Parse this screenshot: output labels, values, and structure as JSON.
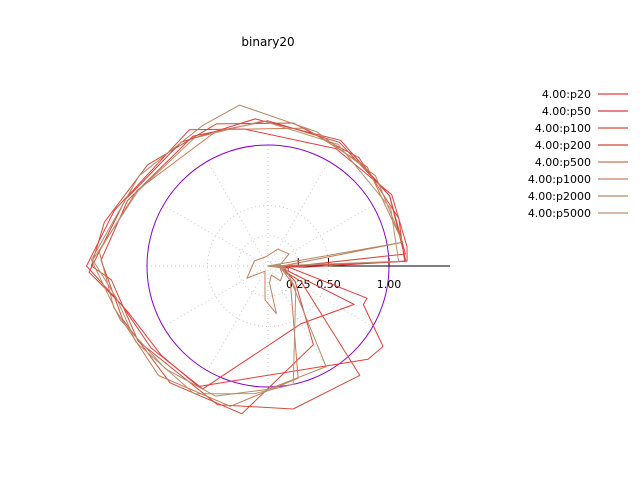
{
  "chart_data": {
    "type": "polar",
    "title": "binary20",
    "radial_ticks": [
      {
        "label": "0.25",
        "value": 0.25
      },
      {
        "label": "0.50",
        "value": 0.5
      },
      {
        "label": "1.00",
        "value": 1.0
      }
    ],
    "unit_circle": {
      "radius": 1.0,
      "color": "#8800cc"
    },
    "grid": true,
    "legend_position": "top-right",
    "series": [
      {
        "name": "4.00:p20",
        "color": "#e83c3c",
        "points": [
          [
            0.0,
            0.0
          ],
          [
            0.1,
            0.0
          ],
          [
            0.11,
            -3
          ],
          [
            0.17,
            -3
          ],
          [
            0.2,
            -6
          ],
          [
            0.86,
            -18
          ],
          [
            0.85,
            -22
          ],
          [
            1.16,
            -35
          ],
          [
            1.13,
            -43
          ],
          [
            1.15,
            -120
          ],
          [
            1.15,
            -140
          ],
          [
            1.22,
            -162
          ],
          [
            1.5,
            -180
          ],
          [
            1.35,
            -200
          ],
          [
            1.3,
            -240
          ],
          [
            1.15,
            -260
          ],
          [
            1.12,
            -300
          ],
          [
            1.18,
            -330
          ],
          [
            1.16,
            -352
          ],
          [
            1.15,
            -358
          ],
          [
            0.2,
            -1
          ],
          [
            0.0,
            0.0
          ]
        ]
      },
      {
        "name": "4.00:p50",
        "color": "#e03a3a",
        "points": [
          [
            0.0,
            0.0
          ],
          [
            0.12,
            0.0
          ],
          [
            0.12,
            -5
          ],
          [
            0.17,
            -6
          ],
          [
            0.17,
            -14
          ],
          [
            0.78,
            -24
          ],
          [
            0.55,
            -60
          ],
          [
            1.15,
            -118
          ],
          [
            1.18,
            -145
          ],
          [
            1.25,
            -165
          ],
          [
            1.48,
            -178
          ],
          [
            1.3,
            -205
          ],
          [
            1.25,
            -235
          ],
          [
            1.22,
            -265
          ],
          [
            1.2,
            -300
          ],
          [
            1.16,
            -330
          ],
          [
            1.14,
            -358
          ],
          [
            0.3,
            -2
          ],
          [
            0.0,
            0.0
          ]
        ]
      },
      {
        "name": "4.00:p100",
        "color": "#d84a3a",
        "points": [
          [
            0.0,
            0.0
          ],
          [
            0.15,
            0.0
          ],
          [
            0.14,
            -10
          ],
          [
            0.16,
            -20
          ],
          [
            0.3,
            -25
          ],
          [
            1.18,
            -50
          ],
          [
            1.2,
            -80
          ],
          [
            1.22,
            -110
          ],
          [
            1.24,
            -150
          ],
          [
            1.3,
            -175
          ],
          [
            1.46,
            -180
          ],
          [
            1.4,
            -195
          ],
          [
            1.3,
            -220
          ],
          [
            1.25,
            -250
          ],
          [
            1.2,
            -280
          ],
          [
            1.17,
            -310
          ],
          [
            1.15,
            -340
          ],
          [
            1.13,
            -358
          ],
          [
            0.1,
            -1
          ],
          [
            0.0,
            0.0
          ]
        ]
      },
      {
        "name": "4.00:p200",
        "color": "#d0483a",
        "points": [
          [
            0.0,
            0.0
          ],
          [
            0.12,
            -2
          ],
          [
            0.13,
            -12
          ],
          [
            0.17,
            -18
          ],
          [
            0.26,
            -30
          ],
          [
            0.75,
            -60
          ],
          [
            1.24,
            -100
          ],
          [
            1.26,
            -130
          ],
          [
            1.28,
            -160
          ],
          [
            1.38,
            -182
          ],
          [
            1.28,
            -205
          ],
          [
            1.24,
            -240
          ],
          [
            1.2,
            -270
          ],
          [
            1.18,
            -300
          ],
          [
            1.16,
            -330
          ],
          [
            1.14,
            -355
          ],
          [
            0.2,
            -1
          ],
          [
            0.0,
            0.0
          ]
        ]
      },
      {
        "name": "4.00:p500",
        "color": "#c87850",
        "points": [
          [
            0.0,
            0.0
          ],
          [
            0.1,
            -3
          ],
          [
            0.12,
            -15
          ],
          [
            0.2,
            -25
          ],
          [
            0.96,
            -75
          ],
          [
            1.2,
            -105
          ],
          [
            1.28,
            -135
          ],
          [
            1.32,
            -165
          ],
          [
            1.4,
            -185
          ],
          [
            1.25,
            -210
          ],
          [
            1.2,
            -250
          ],
          [
            1.18,
            -285
          ],
          [
            1.16,
            -315
          ],
          [
            1.13,
            -350
          ],
          [
            0.1,
            -2
          ],
          [
            0.0,
            0.0
          ]
        ]
      },
      {
        "name": "4.00:p1000",
        "color": "#c08060",
        "points": [
          [
            0.0,
            0.0
          ],
          [
            0.1,
            -5
          ],
          [
            0.11,
            -18
          ],
          [
            0.14,
            -30
          ],
          [
            0.16,
            -50
          ],
          [
            0.08,
            -70
          ],
          [
            0.14,
            -85
          ],
          [
            0.4,
            -80
          ],
          [
            0.28,
            -95
          ],
          [
            0.05,
            -120
          ],
          [
            0.2,
            -150
          ],
          [
            0.12,
            -200
          ],
          [
            0.08,
            -260
          ],
          [
            0.16,
            -300
          ],
          [
            0.2,
            -330
          ],
          [
            0.1,
            -355
          ],
          [
            0.0,
            0.0
          ]
        ]
      },
      {
        "name": "4.00:p2000",
        "color": "#b08a68",
        "points": [
          [
            0.0,
            0.0
          ],
          [
            0.12,
            -8
          ],
          [
            0.14,
            -20
          ],
          [
            0.24,
            -35
          ],
          [
            0.96,
            -60
          ],
          [
            1.02,
            -90
          ],
          [
            1.16,
            -112
          ],
          [
            1.2,
            -135
          ],
          [
            1.3,
            -160
          ],
          [
            1.46,
            -182
          ],
          [
            1.3,
            -215
          ],
          [
            1.28,
            -245
          ],
          [
            1.35,
            -260
          ],
          [
            1.18,
            -290
          ],
          [
            1.16,
            -320
          ],
          [
            1.13,
            -350
          ],
          [
            0.0,
            0.0
          ]
        ]
      },
      {
        "name": "4.00:p5000",
        "color": "#b89070",
        "points": [
          [
            0.0,
            0.0
          ],
          [
            0.14,
            -4
          ],
          [
            0.16,
            -15
          ],
          [
            0.3,
            -40
          ],
          [
            1.0,
            -78
          ],
          [
            1.06,
            -96
          ],
          [
            1.22,
            -120
          ],
          [
            1.26,
            -150
          ],
          [
            1.28,
            -168
          ],
          [
            1.45,
            -182
          ],
          [
            1.24,
            -210
          ],
          [
            1.22,
            -240
          ],
          [
            1.2,
            -268
          ],
          [
            1.16,
            -300
          ],
          [
            1.12,
            -335
          ],
          [
            1.08,
            -358
          ],
          [
            0.0,
            0.0
          ]
        ]
      }
    ]
  }
}
